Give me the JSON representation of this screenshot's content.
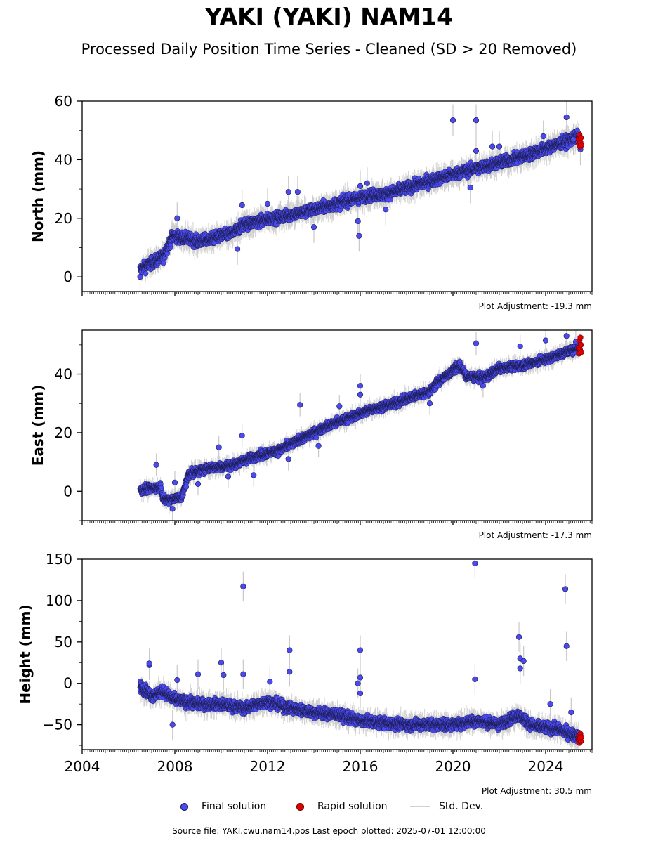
{
  "title": "YAKI (YAKI) NAM14",
  "subtitle": "Processed Daily Position Time Series - Cleaned (SD > 20 Removed)",
  "footer": "Source file: YAKI.cwu.nam14.pos  Last epoch plotted: 2025-07-01 12:00:00",
  "legend": {
    "final_label": "Final solution",
    "rapid_label": "Rapid solution",
    "std_label": "Std. Dev."
  },
  "colors": {
    "final": "#4a4af0",
    "final_edge": "#1a1a4a",
    "rapid": "#e00000",
    "std": "#c8c8c8"
  },
  "chart_data": [
    {
      "type": "scatter",
      "ylabel": "North (mm)",
      "xlim": [
        2004.0,
        2026.0
      ],
      "ylim": [
        -5,
        60
      ],
      "yticks": [
        0,
        20,
        40,
        60
      ],
      "xticks": [
        2004,
        2008,
        2012,
        2016,
        2020,
        2024
      ],
      "show_xtick_labels": false,
      "adjustment": "Plot Adjustment: -19.3 mm",
      "trend": [
        [
          2006.5,
          2.5
        ],
        [
          2007.5,
          7
        ],
        [
          2007.9,
          14
        ],
        [
          2008.6,
          13
        ],
        [
          2009.0,
          12
        ],
        [
          2010.5,
          15
        ],
        [
          2011.0,
          18
        ],
        [
          2013.5,
          22
        ],
        [
          2015.0,
          25
        ],
        [
          2016.5,
          28
        ],
        [
          2017.0,
          28
        ],
        [
          2020.0,
          35
        ],
        [
          2021.5,
          38
        ],
        [
          2023.0,
          41
        ],
        [
          2025.45,
          48
        ]
      ],
      "noise": 1.8,
      "outliers": [
        [
          2006.5,
          0
        ],
        [
          2008.1,
          20
        ],
        [
          2010.7,
          9.5
        ],
        [
          2010.9,
          24.5
        ],
        [
          2012.0,
          25
        ],
        [
          2012.9,
          29
        ],
        [
          2013.3,
          29
        ],
        [
          2014.0,
          17
        ],
        [
          2015.9,
          19
        ],
        [
          2015.95,
          14
        ],
        [
          2016.0,
          31
        ],
        [
          2016.3,
          32
        ],
        [
          2017.1,
          23
        ],
        [
          2020.0,
          53.5
        ],
        [
          2020.75,
          30.5
        ],
        [
          2021.0,
          53.5
        ],
        [
          2021.0,
          43
        ],
        [
          2021.7,
          44.5
        ],
        [
          2022.0,
          44.5
        ],
        [
          2023.9,
          48
        ],
        [
          2024.9,
          54.5
        ],
        [
          2025.2,
          47
        ],
        [
          2025.5,
          43.5
        ]
      ],
      "rapid": [
        [
          2025.42,
          47
        ],
        [
          2025.44,
          45.5
        ],
        [
          2025.46,
          48.5
        ],
        [
          2025.48,
          44.5
        ],
        [
          2025.5,
          46
        ],
        [
          2025.52,
          47.5
        ],
        [
          2025.54,
          45
        ]
      ]
    },
    {
      "type": "scatter",
      "ylabel": "East (mm)",
      "xlim": [
        2004.0,
        2026.0
      ],
      "ylim": [
        -10,
        55
      ],
      "yticks": [
        0,
        20,
        40
      ],
      "xticks": [
        2004,
        2008,
        2012,
        2016,
        2020,
        2024
      ],
      "show_xtick_labels": false,
      "adjustment": "Plot Adjustment: -17.3 mm",
      "trend": [
        [
          2006.5,
          0.5
        ],
        [
          2007.4,
          1.5
        ],
        [
          2007.5,
          -3
        ],
        [
          2008.3,
          -2
        ],
        [
          2008.6,
          6
        ],
        [
          2009.5,
          8
        ],
        [
          2010.5,
          9
        ],
        [
          2011.5,
          12
        ],
        [
          2012.5,
          14
        ],
        [
          2013.5,
          18
        ],
        [
          2014.5,
          22
        ],
        [
          2015.5,
          25
        ],
        [
          2016.5,
          28
        ],
        [
          2017.5,
          30
        ],
        [
          2018.5,
          33
        ],
        [
          2019.0,
          34
        ],
        [
          2019.3,
          37
        ],
        [
          2020.3,
          43
        ],
        [
          2020.6,
          39
        ],
        [
          2021.4,
          39
        ],
        [
          2022.0,
          42
        ],
        [
          2023.0,
          43
        ],
        [
          2024.0,
          45
        ],
        [
          2025.45,
          49
        ]
      ],
      "noise": 1.3,
      "outliers": [
        [
          2007.2,
          9
        ],
        [
          2007.9,
          -6
        ],
        [
          2008.0,
          3
        ],
        [
          2009.0,
          2.5
        ],
        [
          2009.9,
          15
        ],
        [
          2010.3,
          5
        ],
        [
          2010.9,
          19
        ],
        [
          2011.4,
          5.5
        ],
        [
          2012.9,
          11
        ],
        [
          2013.4,
          29.5
        ],
        [
          2014.2,
          15.5
        ],
        [
          2015.1,
          29
        ],
        [
          2016.0,
          36
        ],
        [
          2016.0,
          33
        ],
        [
          2019.0,
          30
        ],
        [
          2021.0,
          50.5
        ],
        [
          2021.3,
          36
        ],
        [
          2022.9,
          49.5
        ],
        [
          2024.0,
          51.5
        ],
        [
          2024.9,
          53
        ],
        [
          2025.3,
          51
        ]
      ],
      "rapid": [
        [
          2025.42,
          49
        ],
        [
          2025.44,
          47
        ],
        [
          2025.46,
          51.5
        ],
        [
          2025.48,
          48.5
        ],
        [
          2025.5,
          52.5
        ],
        [
          2025.52,
          50
        ],
        [
          2025.54,
          47.5
        ]
      ]
    },
    {
      "type": "scatter",
      "ylabel": "Height (mm)",
      "xlim": [
        2004.0,
        2026.0
      ],
      "ylim": [
        -80,
        150
      ],
      "yticks": [
        -50,
        0,
        50,
        100,
        150
      ],
      "xticks": [
        2004,
        2008,
        2012,
        2016,
        2020,
        2024
      ],
      "show_xtick_labels": true,
      "xtick_labels": [
        "2004",
        "2008",
        "2012",
        "2016",
        "2020",
        "2024"
      ],
      "adjustment": "Plot Adjustment: 30.5 mm",
      "trend": [
        [
          2006.5,
          -3
        ],
        [
          2007.0,
          -15
        ],
        [
          2007.5,
          -10
        ],
        [
          2008.0,
          -20
        ],
        [
          2009.0,
          -25
        ],
        [
          2010.0,
          -25
        ],
        [
          2011.0,
          -30
        ],
        [
          2012.0,
          -22
        ],
        [
          2013.0,
          -30
        ],
        [
          2014.0,
          -35
        ],
        [
          2015.0,
          -38
        ],
        [
          2016.0,
          -45
        ],
        [
          2017.0,
          -48
        ],
        [
          2018.0,
          -50
        ],
        [
          2019.0,
          -50
        ],
        [
          2020.0,
          -50
        ],
        [
          2021.0,
          -45
        ],
        [
          2022.0,
          -50
        ],
        [
          2022.8,
          -38
        ],
        [
          2023.5,
          -52
        ],
        [
          2024.5,
          -55
        ],
        [
          2025.45,
          -65
        ]
      ],
      "noise": 6,
      "outliers": [
        [
          2006.9,
          22
        ],
        [
          2006.9,
          24
        ],
        [
          2007.9,
          -50
        ],
        [
          2008.1,
          4
        ],
        [
          2009.0,
          11
        ],
        [
          2010.0,
          25
        ],
        [
          2010.1,
          10
        ],
        [
          2010.95,
          117
        ],
        [
          2010.95,
          11
        ],
        [
          2012.1,
          2
        ],
        [
          2012.95,
          40
        ],
        [
          2012.95,
          14
        ],
        [
          2015.9,
          0
        ],
        [
          2016.0,
          40
        ],
        [
          2016.0,
          7
        ],
        [
          2016.0,
          -12
        ],
        [
          2020.95,
          145
        ],
        [
          2020.95,
          5
        ],
        [
          2022.85,
          56
        ],
        [
          2022.9,
          30
        ],
        [
          2022.9,
          18
        ],
        [
          2023.05,
          27
        ],
        [
          2024.85,
          114
        ],
        [
          2024.9,
          45
        ],
        [
          2024.2,
          -25
        ],
        [
          2025.1,
          -35
        ]
      ],
      "rapid": [
        [
          2025.42,
          -68
        ],
        [
          2025.44,
          -63
        ],
        [
          2025.46,
          -72
        ],
        [
          2025.48,
          -66
        ],
        [
          2025.5,
          -61
        ],
        [
          2025.52,
          -70
        ],
        [
          2025.54,
          -65
        ]
      ]
    }
  ]
}
